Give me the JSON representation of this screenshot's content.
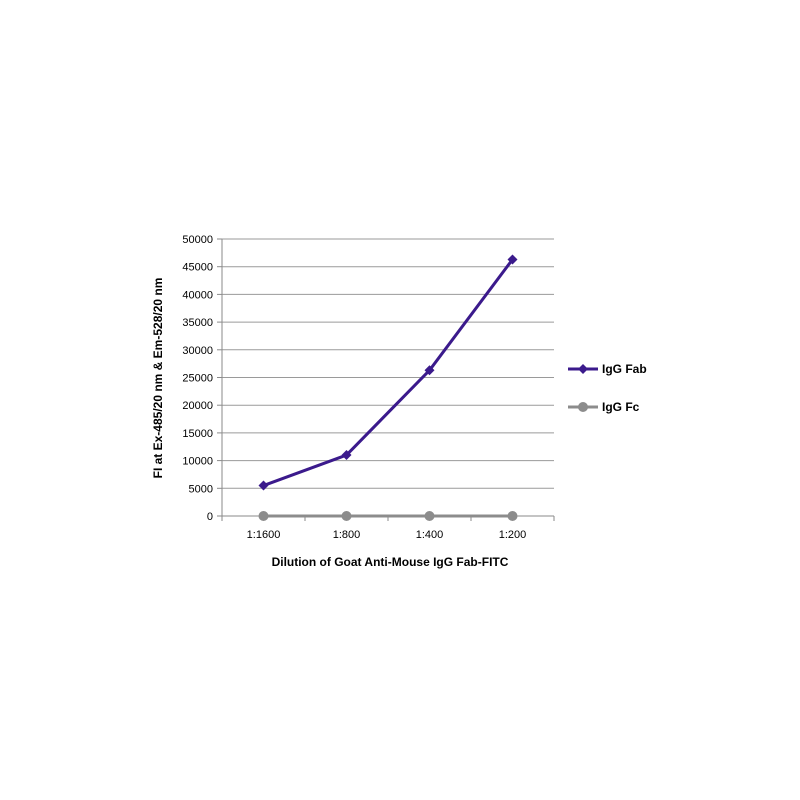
{
  "chart_data": {
    "type": "line",
    "title": "",
    "xlabel": "Dilution of Goat Anti-Mouse IgG Fab-FITC",
    "ylabel": "FI at Ex-485/20 nm & Em-528/20 nm",
    "categories": [
      "1:1600",
      "1:800",
      "1:400",
      "1:200"
    ],
    "ylim": [
      0,
      50000
    ],
    "yticks": [
      0,
      5000,
      10000,
      15000,
      20000,
      25000,
      30000,
      35000,
      40000,
      45000,
      50000
    ],
    "grid": true,
    "legend_position": "right",
    "series": [
      {
        "name": "IgG Fab",
        "values": [
          5500,
          11000,
          26300,
          46300
        ],
        "color": "#3b1a8c",
        "marker": "diamond"
      },
      {
        "name": "IgG Fc",
        "values": [
          0,
          0,
          0,
          0
        ],
        "color": "#8c8c8c",
        "marker": "circle"
      }
    ]
  }
}
